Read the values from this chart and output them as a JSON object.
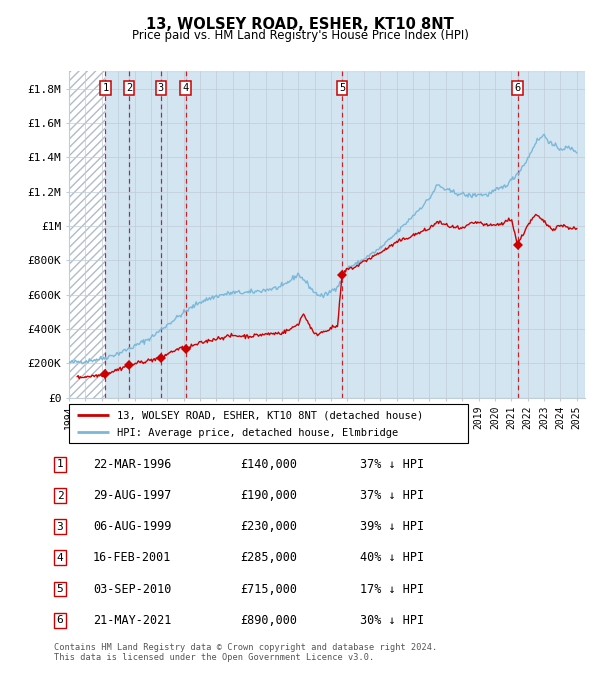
{
  "title": "13, WOLSEY ROAD, ESHER, KT10 8NT",
  "subtitle": "Price paid vs. HM Land Registry's House Price Index (HPI)",
  "ylim": [
    0,
    1900000
  ],
  "xlim_start": 1994.0,
  "xlim_end": 2025.5,
  "yticks": [
    0,
    200000,
    400000,
    600000,
    800000,
    1000000,
    1200000,
    1400000,
    1600000,
    1800000
  ],
  "ytick_labels": [
    "£0",
    "£200K",
    "£400K",
    "£600K",
    "£800K",
    "£1M",
    "£1.2M",
    "£1.4M",
    "£1.6M",
    "£1.8M"
  ],
  "xtick_years": [
    1994,
    1995,
    1996,
    1997,
    1998,
    1999,
    2000,
    2001,
    2002,
    2003,
    2004,
    2005,
    2006,
    2007,
    2008,
    2009,
    2010,
    2011,
    2012,
    2013,
    2014,
    2015,
    2016,
    2017,
    2018,
    2019,
    2020,
    2021,
    2022,
    2023,
    2024,
    2025
  ],
  "sales": [
    {
      "num": 1,
      "date": "22-MAR-1996",
      "year": 1996.22,
      "price": 140000,
      "pct": "37%",
      "dir": "↓"
    },
    {
      "num": 2,
      "date": "29-AUG-1997",
      "year": 1997.66,
      "price": 190000,
      "pct": "37%",
      "dir": "↓"
    },
    {
      "num": 3,
      "date": "06-AUG-1999",
      "year": 1999.6,
      "price": 230000,
      "pct": "39%",
      "dir": "↓"
    },
    {
      "num": 4,
      "date": "16-FEB-2001",
      "year": 2001.12,
      "price": 285000,
      "pct": "40%",
      "dir": "↓"
    },
    {
      "num": 5,
      "date": "03-SEP-2010",
      "year": 2010.67,
      "price": 715000,
      "pct": "17%",
      "dir": "↓"
    },
    {
      "num": 6,
      "date": "21-MAY-2021",
      "year": 2021.38,
      "price": 890000,
      "pct": "30%",
      "dir": "↓"
    }
  ],
  "hpi_color": "#7ab8d9",
  "price_color": "#cc0000",
  "vline_color": "#cc0000",
  "grid_color": "#c0ccd8",
  "plot_bg": "#e8f0f8",
  "legend_line1": "13, WOLSEY ROAD, ESHER, KT10 8NT (detached house)",
  "legend_line2": "HPI: Average price, detached house, Elmbridge",
  "footer_text": "Contains HM Land Registry data © Crown copyright and database right 2024.\nThis data is licensed under the Open Government Licence v3.0.",
  "hpi_anchors": [
    [
      1994.0,
      205000
    ],
    [
      1995.0,
      213000
    ],
    [
      1996.0,
      228000
    ],
    [
      1997.0,
      258000
    ],
    [
      1998.0,
      300000
    ],
    [
      1999.0,
      350000
    ],
    [
      2000.0,
      425000
    ],
    [
      2001.0,
      495000
    ],
    [
      2002.0,
      558000
    ],
    [
      2003.0,
      592000
    ],
    [
      2004.0,
      612000
    ],
    [
      2005.0,
      612000
    ],
    [
      2006.0,
      628000
    ],
    [
      2007.0,
      645000
    ],
    [
      2008.0,
      720000
    ],
    [
      2008.5,
      670000
    ],
    [
      2009.0,
      610000
    ],
    [
      2009.5,
      590000
    ],
    [
      2010.0,
      620000
    ],
    [
      2010.5,
      660000
    ],
    [
      2011.0,
      760000
    ],
    [
      2011.5,
      775000
    ],
    [
      2012.0,
      808000
    ],
    [
      2013.0,
      870000
    ],
    [
      2014.0,
      960000
    ],
    [
      2015.0,
      1060000
    ],
    [
      2016.0,
      1160000
    ],
    [
      2016.5,
      1240000
    ],
    [
      2017.0,
      1210000
    ],
    [
      2017.5,
      1195000
    ],
    [
      2018.0,
      1185000
    ],
    [
      2018.5,
      1175000
    ],
    [
      2019.0,
      1185000
    ],
    [
      2019.5,
      1180000
    ],
    [
      2020.0,
      1205000
    ],
    [
      2020.5,
      1225000
    ],
    [
      2021.0,
      1265000
    ],
    [
      2021.5,
      1320000
    ],
    [
      2022.0,
      1390000
    ],
    [
      2022.5,
      1490000
    ],
    [
      2023.0,
      1530000
    ],
    [
      2023.5,
      1470000
    ],
    [
      2024.0,
      1450000
    ],
    [
      2024.5,
      1455000
    ],
    [
      2025.0,
      1435000
    ]
  ],
  "price_anchors": [
    [
      1994.5,
      118000
    ],
    [
      1996.0,
      133000
    ],
    [
      1996.22,
      140000
    ],
    [
      1996.5,
      148000
    ],
    [
      1997.0,
      165000
    ],
    [
      1997.66,
      190000
    ],
    [
      1998.0,
      198000
    ],
    [
      1998.5,
      210000
    ],
    [
      1999.0,
      220000
    ],
    [
      1999.6,
      230000
    ],
    [
      2000.0,
      255000
    ],
    [
      2000.5,
      278000
    ],
    [
      2001.0,
      292000
    ],
    [
      2001.12,
      285000
    ],
    [
      2001.5,
      300000
    ],
    [
      2002.0,
      318000
    ],
    [
      2003.0,
      345000
    ],
    [
      2004.0,
      362000
    ],
    [
      2005.0,
      358000
    ],
    [
      2006.0,
      370000
    ],
    [
      2007.0,
      378000
    ],
    [
      2007.5,
      398000
    ],
    [
      2008.0,
      430000
    ],
    [
      2008.3,
      490000
    ],
    [
      2008.6,
      440000
    ],
    [
      2009.0,
      365000
    ],
    [
      2009.5,
      385000
    ],
    [
      2010.0,
      405000
    ],
    [
      2010.4,
      418000
    ],
    [
      2010.67,
      715000
    ],
    [
      2011.0,
      748000
    ],
    [
      2011.5,
      762000
    ],
    [
      2012.0,
      793000
    ],
    [
      2013.0,
      845000
    ],
    [
      2014.0,
      905000
    ],
    [
      2015.0,
      945000
    ],
    [
      2016.0,
      985000
    ],
    [
      2016.5,
      1025000
    ],
    [
      2017.0,
      1005000
    ],
    [
      2017.5,
      992000
    ],
    [
      2018.0,
      982000
    ],
    [
      2018.5,
      1012000
    ],
    [
      2019.0,
      1022000
    ],
    [
      2019.5,
      1002000
    ],
    [
      2020.0,
      1005000
    ],
    [
      2020.5,
      1015000
    ],
    [
      2021.0,
      1045000
    ],
    [
      2021.38,
      890000
    ],
    [
      2021.5,
      912000
    ],
    [
      2022.0,
      1005000
    ],
    [
      2022.5,
      1065000
    ],
    [
      2023.0,
      1025000
    ],
    [
      2023.5,
      982000
    ],
    [
      2024.0,
      1005000
    ],
    [
      2024.5,
      992000
    ],
    [
      2025.0,
      982000
    ]
  ]
}
